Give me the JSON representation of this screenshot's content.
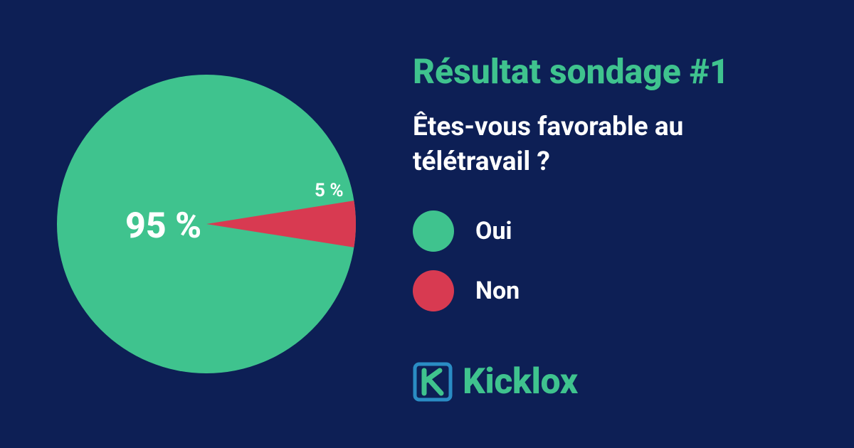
{
  "chart": {
    "type": "pie",
    "radius": 210,
    "background_color": "#0d1f55",
    "slices": [
      {
        "label": "Oui",
        "value": 95,
        "display": "95 %",
        "color": "#3fc38e"
      },
      {
        "label": "Non",
        "value": 5,
        "display": "5 %",
        "color": "#d83a51"
      }
    ],
    "large_label_fontsize": 50,
    "small_label_fontsize": 26,
    "label_color": "#ffffff",
    "minor_slice_start_deg": 351,
    "minor_slice_end_deg": 369
  },
  "title": {
    "text": "Résultat sondage #1",
    "color": "#3fc38e",
    "fontsize": 48,
    "weight": 800
  },
  "question": {
    "text": "Êtes-vous favorable au télétravail ?",
    "color": "#ffffff",
    "fontsize": 37,
    "weight": 700
  },
  "legend": {
    "items": [
      {
        "label": "Oui",
        "color": "#3fc38e"
      },
      {
        "label": "Non",
        "color": "#d83a51"
      }
    ],
    "swatch_radius": 29,
    "label_fontsize": 34,
    "label_weight": 700,
    "label_color": "#ffffff"
  },
  "logo": {
    "text": "Kicklox",
    "color": "#3fc38e",
    "box_border_color": "#2a8cc4",
    "box_fill": "none",
    "k_color": "#3fc38e"
  }
}
